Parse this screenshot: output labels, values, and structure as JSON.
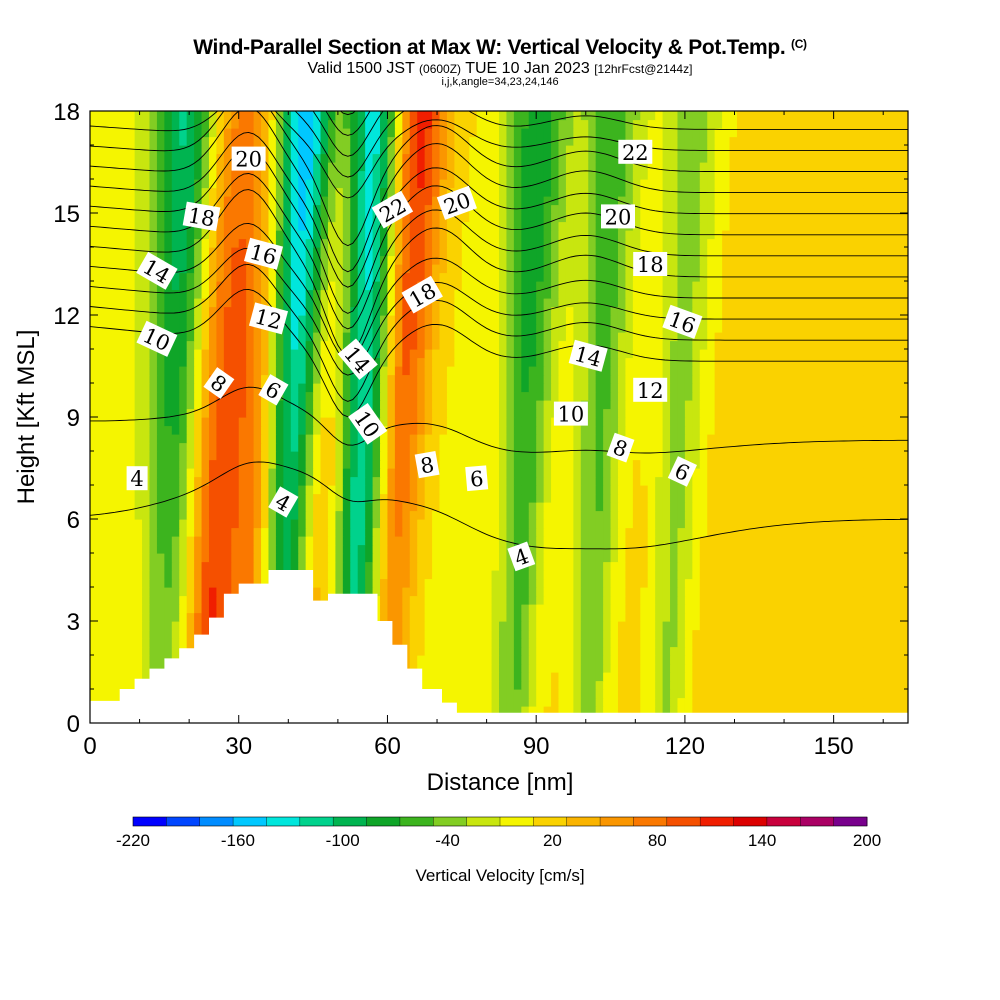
{
  "header": {
    "title": "Wind-Parallel Section at Max W: Vertical Velocity & Pot.Temp.",
    "title_mark": "(C)",
    "valid_prefix": "Valid 1500 JST",
    "valid_zulu": "(0600Z)",
    "valid_date": "TUE 10 Jan 2023",
    "forecast": "[12hrFcst@2144z]",
    "indices": "i,j,k,angle=34,23,24,146"
  },
  "chart_data": {
    "type": "heatmap",
    "xlabel": "Distance [nm]",
    "ylabel": "Height [Kft MSL]",
    "xlim": [
      0,
      165
    ],
    "ylim": [
      0,
      18
    ],
    "x_ticks": [
      0,
      30,
      60,
      90,
      120,
      150
    ],
    "y_ticks": [
      0,
      3,
      6,
      9,
      12,
      15,
      18
    ],
    "colorbar": {
      "title": "Vertical Velocity [cm/s]",
      "min": -220,
      "max": 200,
      "step": 20,
      "tick_labels": [
        "-220",
        "-160",
        "-100",
        "-40",
        "20",
        "80",
        "140",
        "200"
      ],
      "colors": [
        "#0000ff",
        "#0046ff",
        "#008cff",
        "#00c8ff",
        "#00e6dc",
        "#00d28c",
        "#00b450",
        "#0fa528",
        "#3cb41e",
        "#82cd23",
        "#c8e60f",
        "#f5f500",
        "#fad200",
        "#fab400",
        "#fa9600",
        "#fa7800",
        "#f55000",
        "#f01e00",
        "#dc0000",
        "#c8003c",
        "#aa0064",
        "#78008c"
      ]
    },
    "velocity_bands": [
      {
        "x": 17,
        "w_top": -120,
        "w_bottom": -30
      },
      {
        "x": 26,
        "w_top": 60,
        "w_bottom": 120
      },
      {
        "x": 33,
        "w_top": 60,
        "w_bottom": 80
      },
      {
        "x": 41,
        "w_top": -200,
        "w_bottom": -60
      },
      {
        "x": 48,
        "w_top": 60,
        "w_bottom": 40
      },
      {
        "x": 55,
        "w_top": -180,
        "w_bottom": -100
      },
      {
        "x": 63,
        "w_top": 140,
        "w_bottom": 40
      },
      {
        "x": 88,
        "w_top": -100,
        "w_bottom": -60
      },
      {
        "x": 103,
        "w_top": -80,
        "w_bottom": -60
      },
      {
        "x": 119,
        "w_top": -60,
        "w_bottom": -50
      }
    ],
    "terrain": [
      [
        0,
        0.65
      ],
      [
        6,
        0.65
      ],
      [
        6,
        1
      ],
      [
        9,
        1
      ],
      [
        9,
        1.3
      ],
      [
        12,
        1.3
      ],
      [
        12,
        1.6
      ],
      [
        15,
        1.6
      ],
      [
        15,
        1.9
      ],
      [
        18,
        1.9
      ],
      [
        18,
        2.2
      ],
      [
        21,
        2.2
      ],
      [
        21,
        2.6
      ],
      [
        24,
        2.6
      ],
      [
        24,
        3.1
      ],
      [
        27,
        3.1
      ],
      [
        27,
        3.8
      ],
      [
        30,
        3.8
      ],
      [
        30,
        4.1
      ],
      [
        36,
        4.1
      ],
      [
        36,
        4.5
      ],
      [
        45,
        4.5
      ],
      [
        45,
        3.6
      ],
      [
        48,
        3.6
      ],
      [
        48,
        3.8
      ],
      [
        58,
        3.8
      ],
      [
        58,
        3
      ],
      [
        61,
        3
      ],
      [
        61,
        2.3
      ],
      [
        64,
        2.3
      ],
      [
        64,
        1.6
      ],
      [
        67,
        1.6
      ],
      [
        67,
        1
      ],
      [
        71,
        1
      ],
      [
        71,
        0.6
      ],
      [
        74,
        0.6
      ],
      [
        74,
        0.3
      ],
      [
        165,
        0.3
      ]
    ],
    "pot_temp_contours": [
      {
        "value": 4,
        "label": "4"
      },
      {
        "value": 6,
        "label": "6"
      },
      {
        "value": 8,
        "label": "8"
      },
      {
        "value": 10,
        "label": "10"
      },
      {
        "value": 12,
        "label": "12"
      },
      {
        "value": 14,
        "label": "14"
      },
      {
        "value": 16,
        "label": "16"
      },
      {
        "value": 18,
        "label": "18"
      },
      {
        "value": 20,
        "label": "20"
      },
      {
        "value": 22,
        "label": "22"
      }
    ],
    "contour_labels": [
      {
        "text": "4",
        "x": 9.5,
        "y": 7.2,
        "angle": 0
      },
      {
        "text": "4",
        "x": 39,
        "y": 6.5,
        "angle": 30
      },
      {
        "text": "4",
        "x": 87,
        "y": 4.9,
        "angle": -20
      },
      {
        "text": "6",
        "x": 37,
        "y": 9.8,
        "angle": 30
      },
      {
        "text": "6",
        "x": 78,
        "y": 7.2,
        "angle": -5
      },
      {
        "text": "6",
        "x": 119.5,
        "y": 7.4,
        "angle": 25
      },
      {
        "text": "8",
        "x": 26,
        "y": 10,
        "angle": 35
      },
      {
        "text": "8",
        "x": 68,
        "y": 7.6,
        "angle": -10
      },
      {
        "text": "8",
        "x": 107,
        "y": 8.1,
        "angle": 20
      },
      {
        "text": "10",
        "x": 13.5,
        "y": 11.3,
        "angle": 25
      },
      {
        "text": "10",
        "x": 56,
        "y": 8.8,
        "angle": 55
      },
      {
        "text": "10",
        "x": 97,
        "y": 9.1,
        "angle": 0
      },
      {
        "text": "12",
        "x": 36,
        "y": 11.9,
        "angle": 15
      },
      {
        "text": "12",
        "x": 113,
        "y": 9.8,
        "angle": 0
      },
      {
        "text": "14",
        "x": 13.5,
        "y": 13.3,
        "angle": 30
      },
      {
        "text": "14",
        "x": 54,
        "y": 10.7,
        "angle": 50
      },
      {
        "text": "14",
        "x": 100.5,
        "y": 10.8,
        "angle": 15
      },
      {
        "text": "16",
        "x": 35,
        "y": 13.8,
        "angle": 15
      },
      {
        "text": "16",
        "x": 119.5,
        "y": 11.8,
        "angle": 20
      },
      {
        "text": "18",
        "x": 22.5,
        "y": 14.9,
        "angle": 10
      },
      {
        "text": "18",
        "x": 67,
        "y": 12.6,
        "angle": -30
      },
      {
        "text": "18",
        "x": 113,
        "y": 13.5,
        "angle": 0
      },
      {
        "text": "20",
        "x": 32,
        "y": 16.6,
        "angle": 0
      },
      {
        "text": "20",
        "x": 74,
        "y": 15.3,
        "angle": -20
      },
      {
        "text": "20",
        "x": 106.5,
        "y": 14.9,
        "angle": 0
      },
      {
        "text": "22",
        "x": 61,
        "y": 15.1,
        "angle": -30
      },
      {
        "text": "22",
        "x": 110,
        "y": 16.8,
        "angle": 0
      }
    ]
  }
}
